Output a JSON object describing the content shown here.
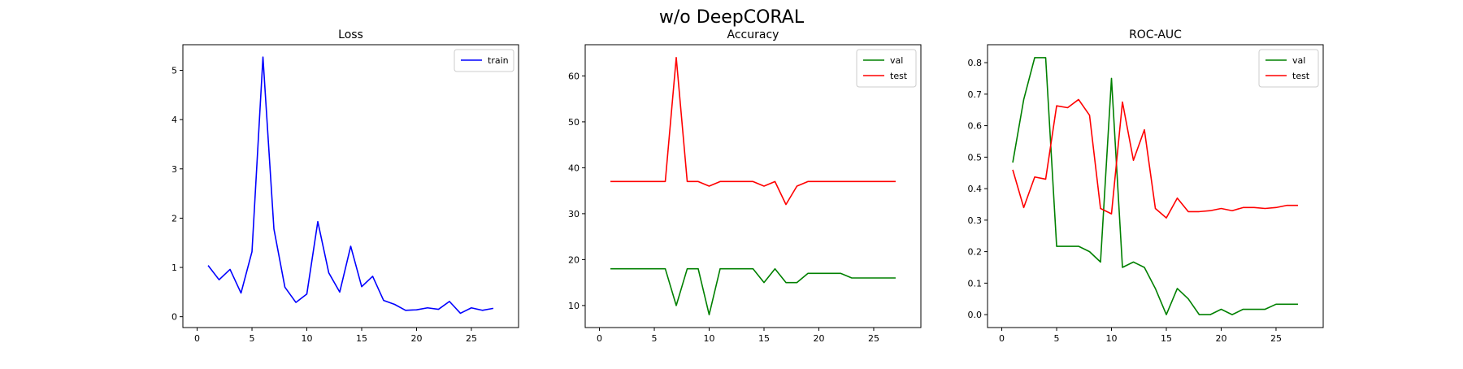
{
  "figure": {
    "suptitle": "w/o DeepCORAL"
  },
  "chart_data": [
    {
      "type": "line",
      "title": "Loss",
      "xlabel": "",
      "ylabel": "",
      "xlim": [
        -1.3,
        29.3
      ],
      "ylim": [
        -0.22,
        5.52
      ],
      "xticks": [
        0,
        5,
        10,
        15,
        20,
        25
      ],
      "yticks": [
        0,
        1,
        2,
        3,
        4,
        5
      ],
      "legend": "upper-right",
      "grid": false,
      "x": [
        1,
        2,
        3,
        4,
        5,
        6,
        7,
        8,
        9,
        10,
        11,
        12,
        13,
        14,
        15,
        16,
        17,
        18,
        19,
        20,
        21,
        22,
        23,
        24,
        25,
        26,
        27
      ],
      "series": [
        {
          "name": "train",
          "color": "#0000ff",
          "values": [
            1.04,
            0.75,
            0.96,
            0.48,
            1.32,
            5.27,
            1.78,
            0.6,
            0.29,
            0.46,
            1.93,
            0.89,
            0.5,
            1.43,
            0.61,
            0.82,
            0.33,
            0.25,
            0.13,
            0.14,
            0.18,
            0.15,
            0.31,
            0.07,
            0.18,
            0.13,
            0.17
          ]
        }
      ]
    },
    {
      "type": "line",
      "title": "Accuracy",
      "xlabel": "",
      "ylabel": "",
      "xlim": [
        -1.3,
        29.3
      ],
      "ylim": [
        5.2,
        66.8
      ],
      "xticks": [
        0,
        5,
        10,
        15,
        20,
        25
      ],
      "yticks": [
        10,
        20,
        30,
        40,
        50,
        60
      ],
      "legend": "upper-right",
      "grid": false,
      "x": [
        1,
        2,
        3,
        4,
        5,
        6,
        7,
        8,
        9,
        10,
        11,
        12,
        13,
        14,
        15,
        16,
        17,
        18,
        19,
        20,
        21,
        22,
        23,
        24,
        25,
        26,
        27
      ],
      "series": [
        {
          "name": "val",
          "color": "#008000",
          "values": [
            18,
            18,
            18,
            18,
            18,
            18,
            10,
            18,
            18,
            8,
            18,
            18,
            18,
            18,
            15,
            18,
            15,
            15,
            17,
            17,
            17,
            17,
            16,
            16,
            16,
            16,
            16
          ]
        },
        {
          "name": "test",
          "color": "#ff0000",
          "values": [
            37,
            37,
            37,
            37,
            37,
            37,
            64,
            37,
            37,
            36,
            37,
            37,
            37,
            37,
            36,
            37,
            32,
            36,
            37,
            37,
            37,
            37,
            37,
            37,
            37,
            37,
            37
          ]
        }
      ]
    },
    {
      "type": "line",
      "title": "ROC-AUC",
      "xlabel": "",
      "ylabel": "",
      "xlim": [
        -1.3,
        29.3
      ],
      "ylim": [
        -0.041,
        0.857
      ],
      "xticks": [
        0,
        5,
        10,
        15,
        20,
        25
      ],
      "yticks": [
        0.0,
        0.1,
        0.2,
        0.3,
        0.4,
        0.5,
        0.6,
        0.7,
        0.8
      ],
      "legend": "upper-right",
      "grid": false,
      "x": [
        1,
        2,
        3,
        4,
        5,
        6,
        7,
        8,
        9,
        10,
        11,
        12,
        13,
        14,
        15,
        16,
        17,
        18,
        19,
        20,
        21,
        22,
        23,
        24,
        25,
        26,
        27
      ],
      "series": [
        {
          "name": "val",
          "color": "#008000",
          "values": [
            0.483,
            0.683,
            0.816,
            0.816,
            0.217,
            0.217,
            0.217,
            0.2,
            0.167,
            0.75,
            0.15,
            0.167,
            0.15,
            0.083,
            0.0,
            0.083,
            0.05,
            0.0,
            0.0,
            0.017,
            0.0,
            0.017,
            0.017,
            0.017,
            0.033,
            0.033,
            0.033
          ]
        },
        {
          "name": "test",
          "color": "#ff0000",
          "values": [
            0.46,
            0.34,
            0.437,
            0.43,
            0.663,
            0.657,
            0.683,
            0.633,
            0.337,
            0.32,
            0.675,
            0.49,
            0.587,
            0.337,
            0.307,
            0.37,
            0.327,
            0.327,
            0.33,
            0.337,
            0.33,
            0.34,
            0.34,
            0.337,
            0.34,
            0.347,
            0.347
          ]
        }
      ]
    }
  ]
}
